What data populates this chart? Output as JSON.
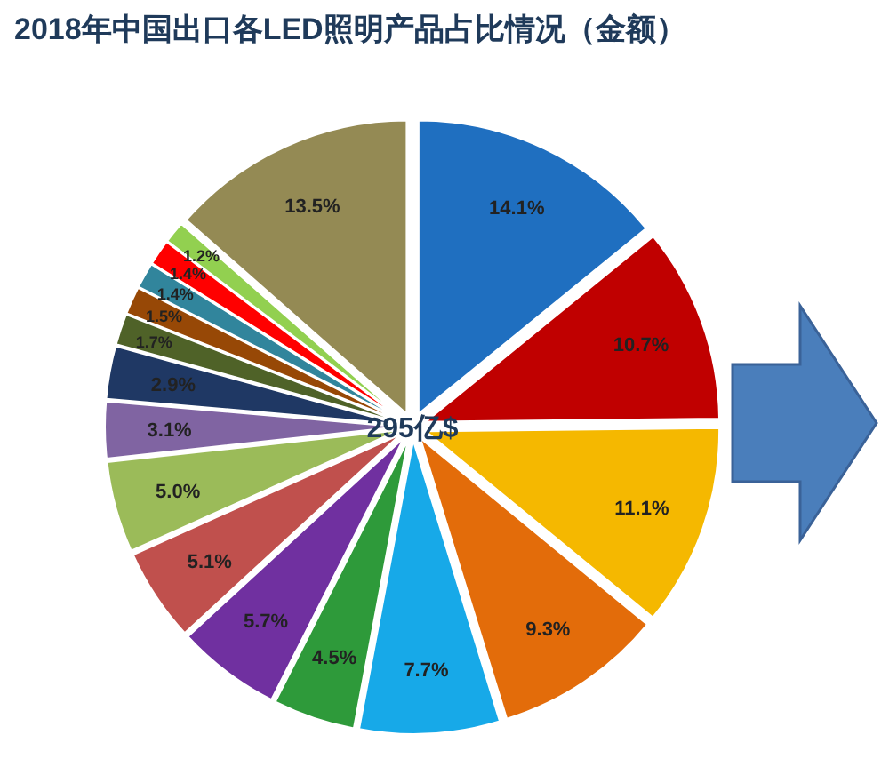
{
  "chart_data": {
    "type": "pie",
    "title": "2018年中国出口各LED照明产品占比情况（金额）",
    "categories": [
      null,
      null,
      null,
      null,
      null,
      null,
      null,
      null,
      null,
      null,
      null,
      null,
      null,
      null,
      null,
      null,
      null
    ],
    "values": [
      14.1,
      10.7,
      11.1,
      9.3,
      7.7,
      4.5,
      5.7,
      5.1,
      5.0,
      3.1,
      2.9,
      1.7,
      1.5,
      1.4,
      1.4,
      1.2,
      13.5
    ],
    "value_labels": [
      "14.1%",
      "10.7%",
      "11.1%",
      "9.3%",
      "7.7%",
      "4.5%",
      "5.7%",
      "5.1%",
      "5.0%",
      "3.1%",
      "2.9%",
      "1.7%",
      "1.5%",
      "1.4%",
      "1.4%",
      "1.2%",
      "13.5%"
    ],
    "colors": [
      "#1f6fc0",
      "#c00000",
      "#f5b800",
      "#e36c0a",
      "#17a9e8",
      "#2e9a3a",
      "#7030a0",
      "#c0504d",
      "#9bbb59",
      "#8064a2",
      "#1f3864",
      "#4f6228",
      "#974806",
      "#31859c",
      "#ff0000",
      "#92d050",
      "#948a54"
    ],
    "annotations": [
      "295亿$"
    ]
  }
}
